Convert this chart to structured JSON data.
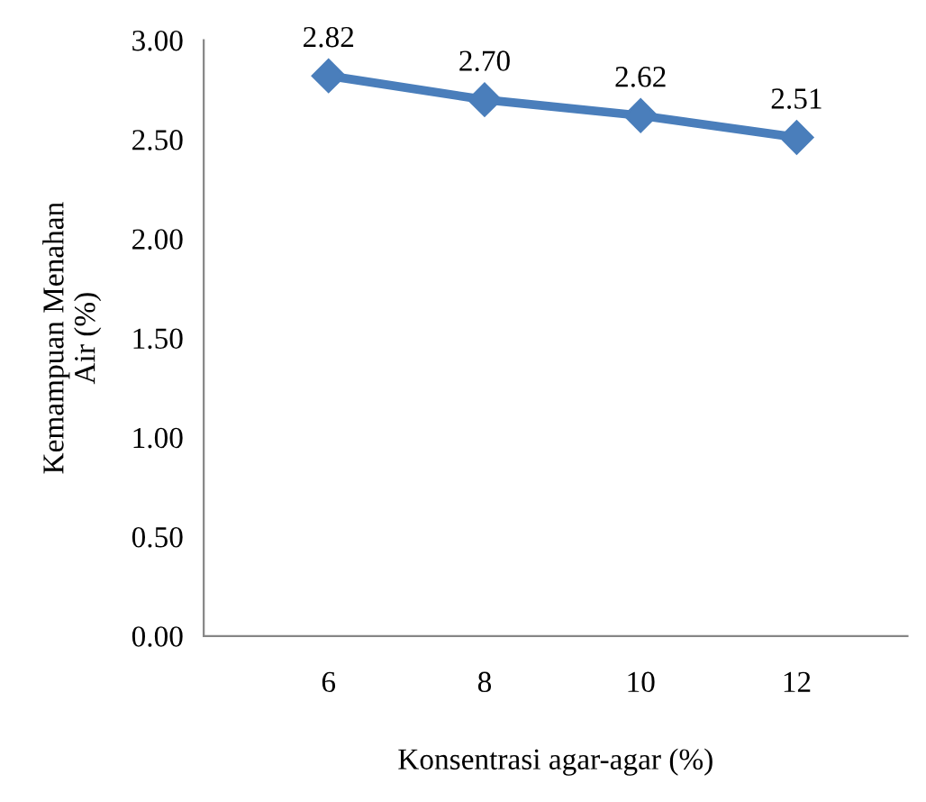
{
  "chart_data": {
    "type": "line",
    "xlabel": "Konsentrasi agar-agar (%)",
    "ylabel": "Kemampuan Menahan\nAir (%)",
    "categories": [
      "6",
      "8",
      "10",
      "12"
    ],
    "series": [
      {
        "color": "#4a7ebb",
        "values": [
          2.82,
          2.7,
          2.62,
          2.51
        ],
        "value_labels": [
          "2.82",
          "2.70",
          "2.62",
          "2.51"
        ]
      }
    ],
    "ylim": [
      0,
      3
    ],
    "yticks": [
      {
        "value": 0,
        "label": "0.00"
      },
      {
        "value": 0.5,
        "label": "0.50"
      },
      {
        "value": 1,
        "label": "1.00"
      },
      {
        "value": 1.5,
        "label": "1.50"
      },
      {
        "value": 2,
        "label": "2.00"
      },
      {
        "value": 2.5,
        "label": "2.50"
      },
      {
        "value": 3,
        "label": "3.00"
      }
    ],
    "marker": "diamond",
    "line_style": "solid",
    "grid": false,
    "legend": false
  }
}
